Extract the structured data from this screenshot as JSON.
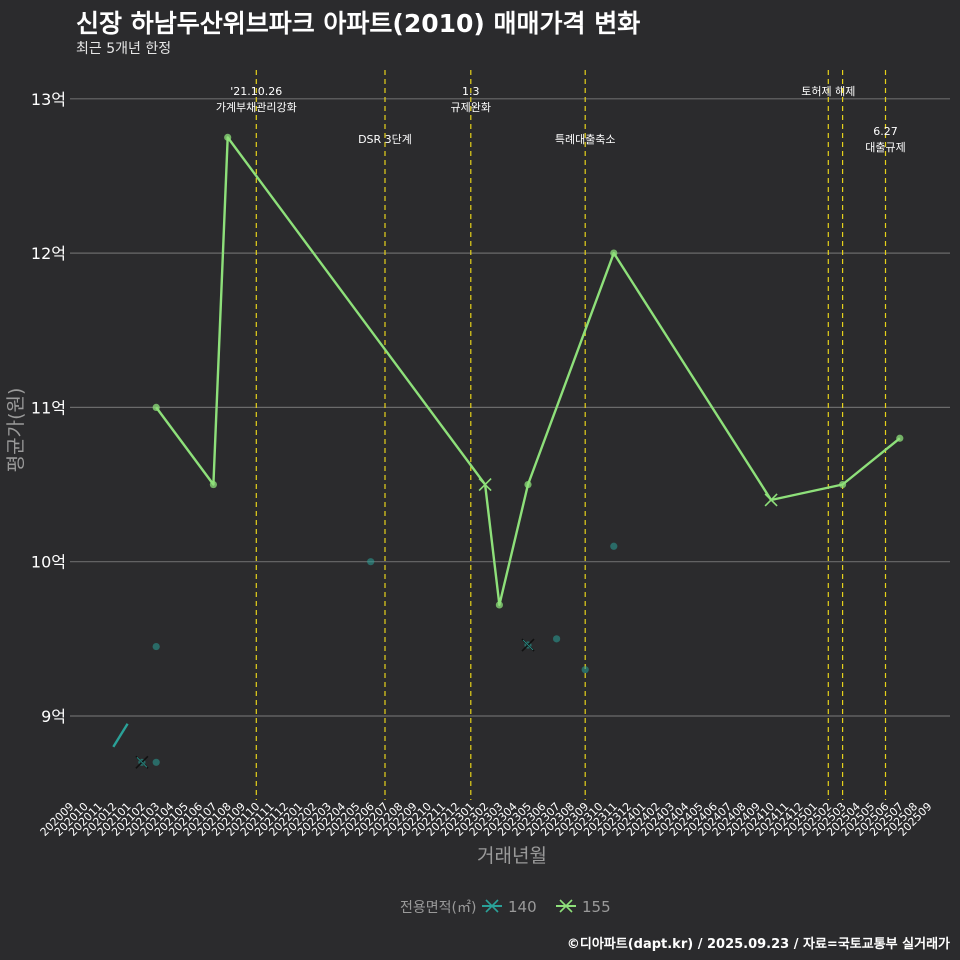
{
  "title": "신장 하남두산위브파크 아파트(2010) 매매가격 변화",
  "subtitle": "최근 5개년 한정",
  "caption": "©디아파트(dapt.kr) / 2025.09.23 / 자료=국토교통부 실거래가",
  "colors": {
    "background": "#2b2b2d",
    "grid": "#6b6b6b",
    "series_140": "#2aa198",
    "series_155": "#8ee07a",
    "event_line": "#e6d21a"
  },
  "chart_data": {
    "type": "line",
    "xlabel": "거래년월",
    "ylabel": "평균가(원)",
    "x_categories": [
      "202009",
      "202010",
      "202011",
      "202012",
      "202101",
      "202102",
      "202103",
      "202104",
      "202105",
      "202106",
      "202107",
      "202108",
      "202109",
      "202110",
      "202111",
      "202112",
      "202201",
      "202202",
      "202203",
      "202204",
      "202205",
      "202206",
      "202207",
      "202208",
      "202209",
      "202210",
      "202211",
      "202212",
      "202301",
      "202302",
      "202303",
      "202304",
      "202305",
      "202306",
      "202307",
      "202308",
      "202309",
      "202310",
      "202311",
      "202312",
      "202401",
      "202402",
      "202403",
      "202404",
      "202405",
      "202406",
      "202407",
      "202408",
      "202409",
      "202410",
      "202411",
      "202412",
      "202501",
      "202502",
      "202503",
      "202504",
      "202505",
      "202506",
      "202507",
      "202508",
      "202509"
    ],
    "y_ticks": [
      {
        "value": 9,
        "label": "9억"
      },
      {
        "value": 10,
        "label": "10억"
      },
      {
        "value": 11,
        "label": "11억"
      },
      {
        "value": 12,
        "label": "12억"
      },
      {
        "value": 13,
        "label": "13억"
      }
    ],
    "y_unit": "억",
    "ylim": [
      8.47,
      13.25
    ],
    "grid": true,
    "legend": {
      "title": "전용면적(㎡)",
      "position": "bottom",
      "entries": [
        "140",
        "155"
      ]
    },
    "series": [
      {
        "name": "140",
        "line": [
          {
            "x": "202012",
            "y": 8.8
          },
          {
            "x": "202101",
            "y": 8.95
          }
        ],
        "crosses": [
          {
            "x": "202102",
            "y": 8.7
          },
          {
            "x": "202305",
            "y": 9.46
          }
        ],
        "points": [
          {
            "x": "202102",
            "y": 8.7
          },
          {
            "x": "202103",
            "y": 8.7
          },
          {
            "x": "202103",
            "y": 9.45
          },
          {
            "x": "202206",
            "y": 10.0
          },
          {
            "x": "202305",
            "y": 9.46
          },
          {
            "x": "202307",
            "y": 9.5
          },
          {
            "x": "202309",
            "y": 9.3
          },
          {
            "x": "202311",
            "y": 10.1
          }
        ]
      },
      {
        "name": "155",
        "line": [
          {
            "x": "202103",
            "y": 11.0
          },
          {
            "x": "202107",
            "y": 10.5
          },
          {
            "x": "202108",
            "y": 12.75
          },
          {
            "x": "202302",
            "y": 10.5
          },
          {
            "x": "202303",
            "y": 9.72
          },
          {
            "x": "202305",
            "y": 10.5
          },
          {
            "x": "202311",
            "y": 12.0
          },
          {
            "x": "202410",
            "y": 10.4
          },
          {
            "x": "202503",
            "y": 10.5
          },
          {
            "x": "202507",
            "y": 10.8
          }
        ],
        "crosses": [
          {
            "x": "202302",
            "y": 10.5
          },
          {
            "x": "202410",
            "y": 10.4
          }
        ],
        "points": [
          {
            "x": "202103",
            "y": 11.0
          },
          {
            "x": "202107",
            "y": 10.5
          },
          {
            "x": "202108",
            "y": 12.75
          },
          {
            "x": "202303",
            "y": 9.72
          },
          {
            "x": "202305",
            "y": 10.5
          },
          {
            "x": "202311",
            "y": 12.0
          },
          {
            "x": "202503",
            "y": 10.5
          },
          {
            "x": "202507",
            "y": 10.8
          }
        ]
      }
    ],
    "events": [
      {
        "x": "202110",
        "label_lines": [
          "'21.10.26",
          "가계부채관리강화"
        ],
        "row": 1
      },
      {
        "x": "202207",
        "label_lines": [
          "DSR 3단계"
        ],
        "row": 2
      },
      {
        "x": "202301",
        "label_lines": [
          "1.3",
          "규제완화"
        ],
        "row": 1
      },
      {
        "x": "202309",
        "label_lines": [
          "특례대출축소"
        ],
        "row": 2
      },
      {
        "x": "202502",
        "label_lines": [
          "토허제 해제"
        ],
        "row": 1
      },
      {
        "x": "202503",
        "label_lines": [],
        "row": 1
      },
      {
        "x": "202506",
        "label_lines": [
          "6.27",
          "대출규제"
        ],
        "row": 3
      }
    ]
  }
}
